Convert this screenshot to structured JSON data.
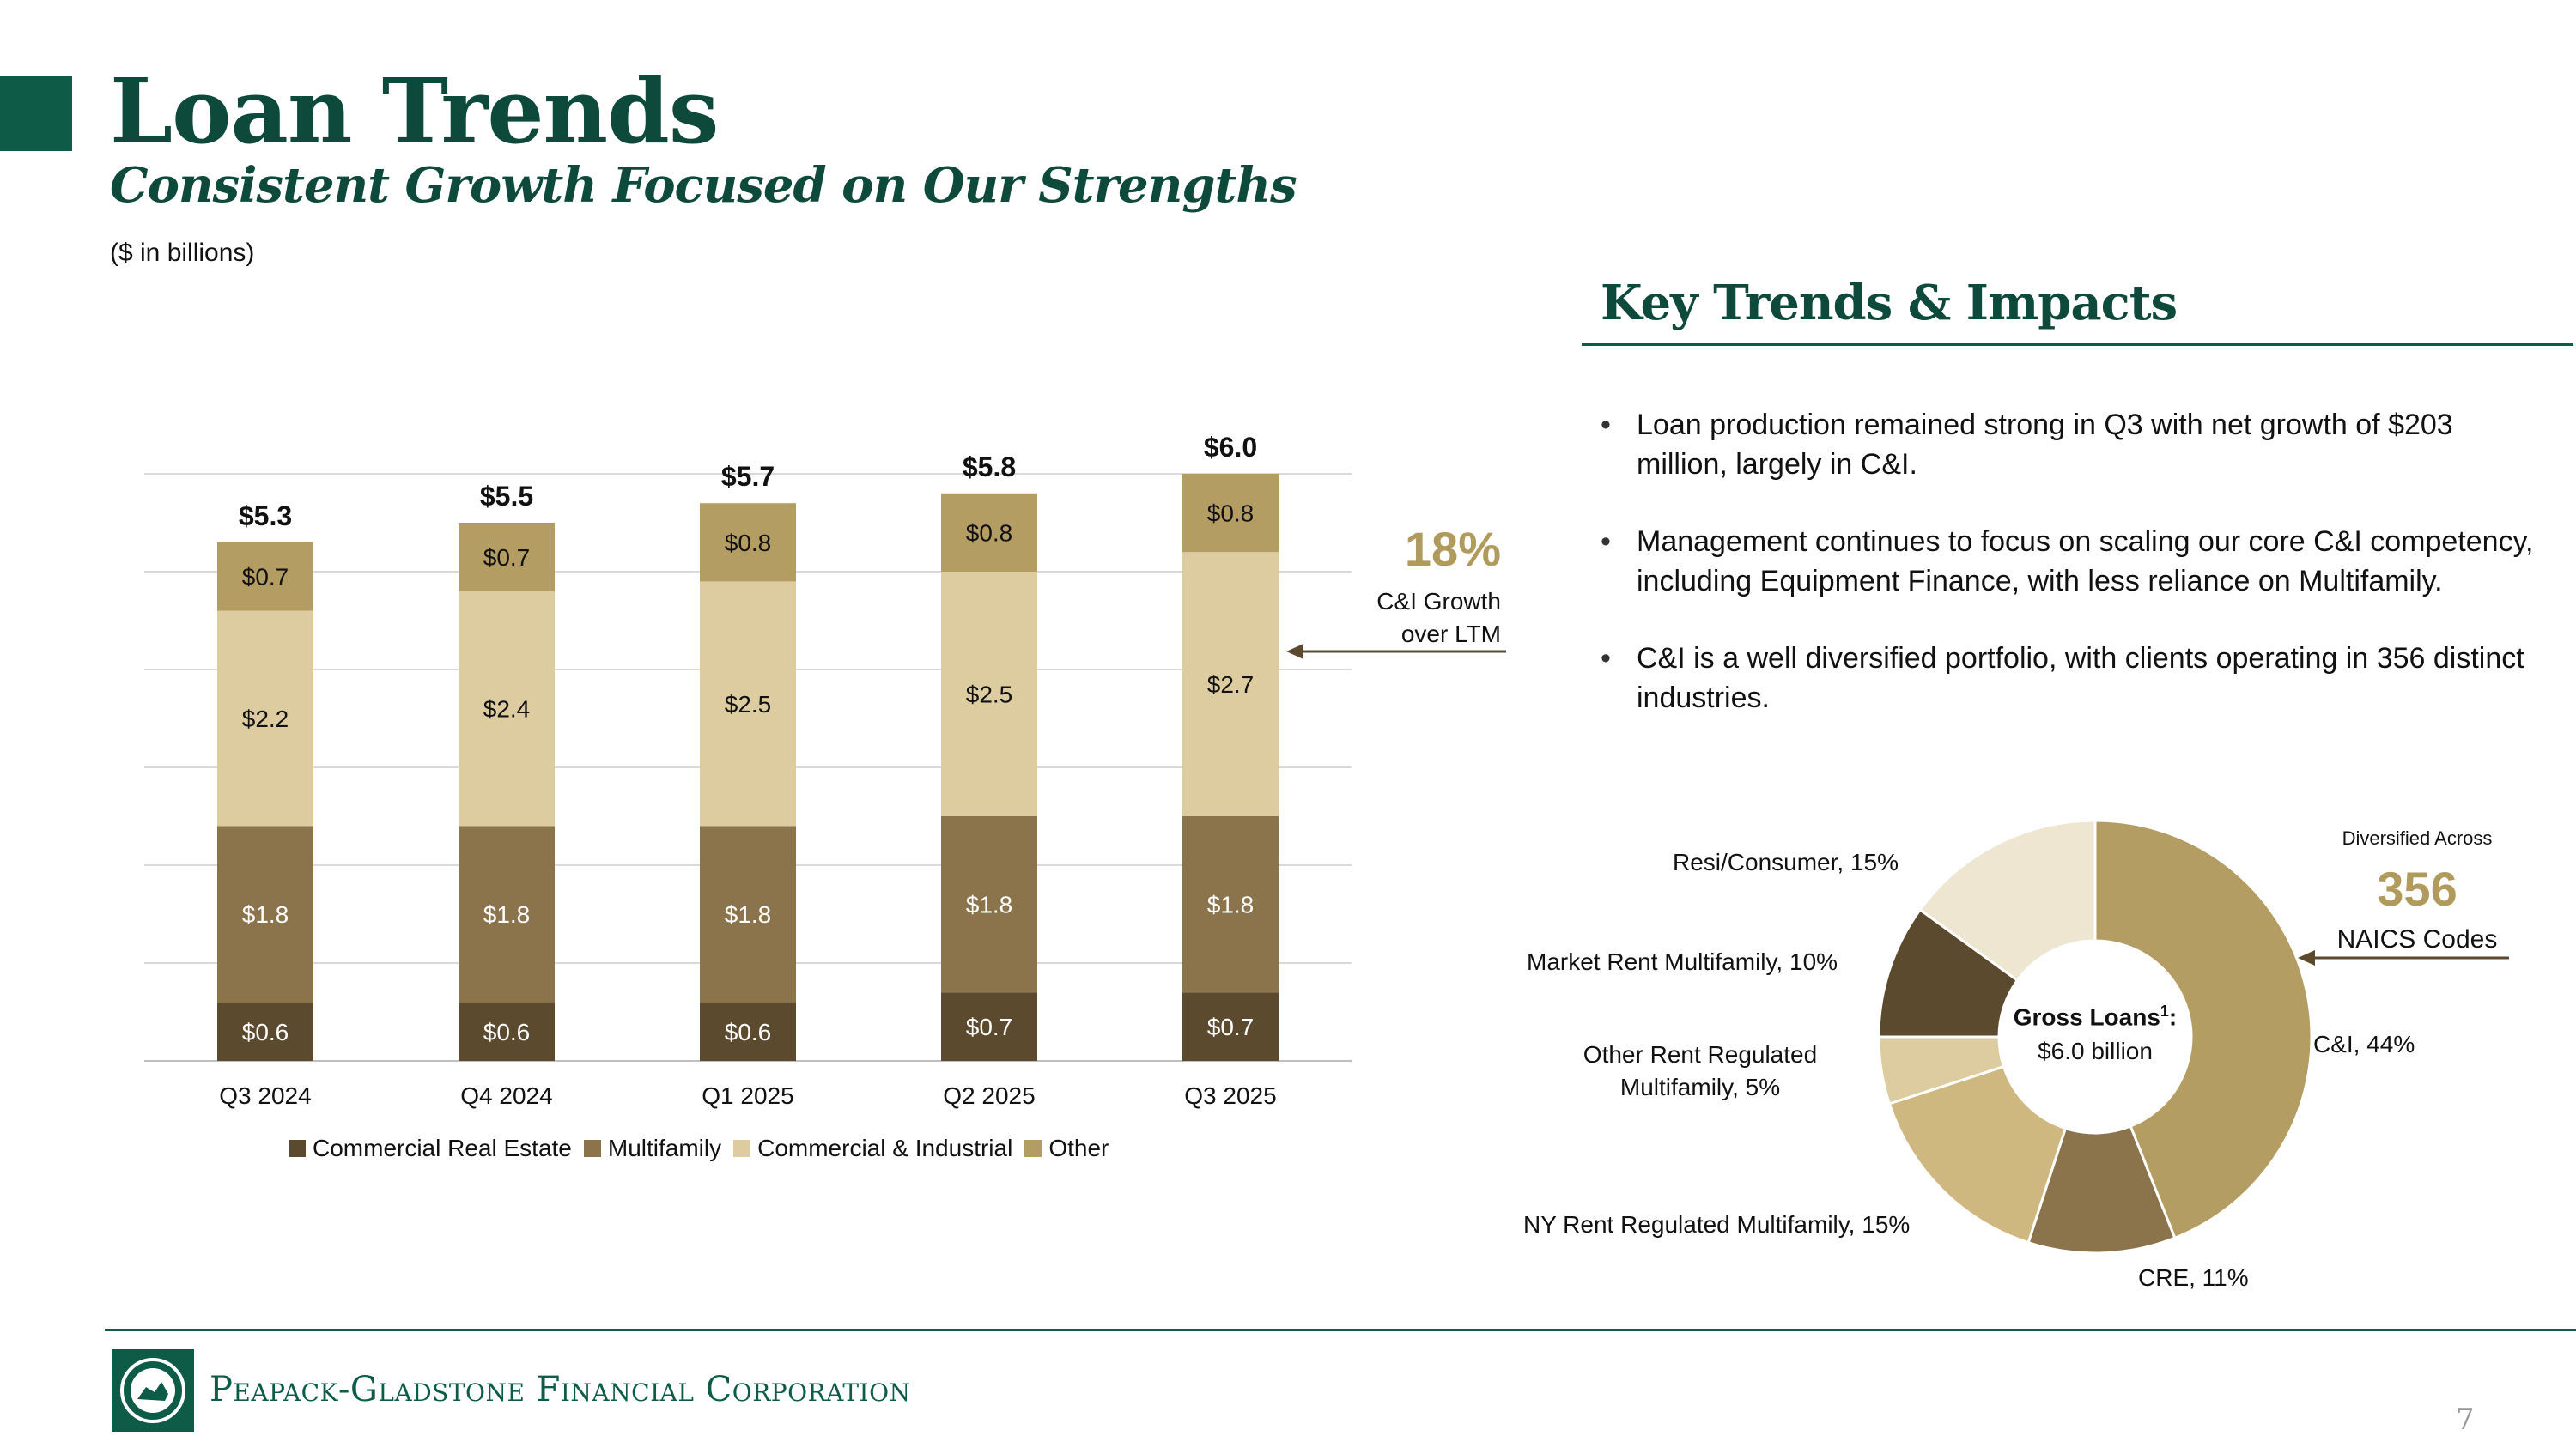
{
  "header": {
    "title": "Loan Trends",
    "subtitle": "Consistent Growth Focused on Our Strengths",
    "units": "($ in billions)"
  },
  "colors": {
    "brand_green": "#0e5b47",
    "cre": "#5b4a2e",
    "multifamily": "#8b744c",
    "ci": "#dccca0",
    "other": "#b39d63",
    "accent_gold": "#b09a5c"
  },
  "chart_data": [
    {
      "type": "bar",
      "stacked": true,
      "title": "",
      "categories": [
        "Q3 2024",
        "Q4 2024",
        "Q1 2025",
        "Q2 2025",
        "Q3 2025"
      ],
      "series": [
        {
          "name": "Commercial Real Estate",
          "values": [
            0.6,
            0.6,
            0.6,
            0.7,
            0.7
          ],
          "labels": [
            "$0.6",
            "$0.6",
            "$0.6",
            "$0.7",
            "$0.7"
          ],
          "color": "#5b4a2e"
        },
        {
          "name": "Multifamily",
          "values": [
            1.8,
            1.8,
            1.8,
            1.8,
            1.8
          ],
          "labels": [
            "$1.8",
            "$1.8",
            "$1.8",
            "$1.8",
            "$1.8"
          ],
          "color": "#8b744c"
        },
        {
          "name": "Commercial & Industrial",
          "values": [
            2.2,
            2.4,
            2.5,
            2.5,
            2.7
          ],
          "labels": [
            "$2.2",
            "$2.4",
            "$2.5",
            "$2.5",
            "$2.7"
          ],
          "color": "#dccca0"
        },
        {
          "name": "Other",
          "values": [
            0.7,
            0.7,
            0.8,
            0.8,
            0.8
          ],
          "labels": [
            "$0.7",
            "$0.7",
            "$0.8",
            "$0.8",
            "$0.8"
          ],
          "color": "#b39d63"
        }
      ],
      "totals": [
        5.3,
        5.5,
        5.7,
        5.8,
        6.0
      ],
      "total_labels": [
        "$5.3",
        "$5.5",
        "$5.7",
        "$5.8",
        "$6.0"
      ],
      "ylim": [
        0,
        6
      ],
      "grid": true,
      "xlabel": "",
      "ylabel": "",
      "legend": "bottom"
    },
    {
      "type": "pie",
      "donut": true,
      "title": "Gross Loans",
      "center_label": "Gross Loans",
      "center_sup": "1",
      "center_value": "$6.0 billion",
      "slices": [
        {
          "name": "C&I",
          "value": 44,
          "label": "C&I, 44%",
          "color": "#b39d63"
        },
        {
          "name": "CRE",
          "value": 11,
          "label": "CRE, 11%",
          "color": "#8b744c"
        },
        {
          "name": "NY Rent Regulated Multifamily",
          "value": 15,
          "label": "NY Rent Regulated Multifamily, 15%",
          "color": "#cfb880"
        },
        {
          "name": "Other Rent Regulated Multifamily",
          "value": 5,
          "label_line1": "Other Rent Regulated",
          "label_line2": "Multifamily, 5%",
          "color": "#dccca0"
        },
        {
          "name": "Market Rent Multifamily",
          "value": 10,
          "label": "Market Rent Multifamily, 10%",
          "color": "#5b4a2e"
        },
        {
          "name": "Resi/Consumer",
          "value": 15,
          "label": "Resi/Consumer, 15%",
          "color": "#efe6d2"
        }
      ]
    }
  ],
  "ci_growth": {
    "value": "18%",
    "line1": "C&I Growth",
    "line2": "over LTM"
  },
  "key_trends": {
    "heading": "Key Trends & Impacts",
    "bullets": [
      "Loan production remained strong in Q3 with net growth of $203 million, largely in C&I.",
      "Management continues to focus on scaling our core C&I competency, including Equipment Finance, with less reliance on Multifamily.",
      "C&I is a well diversified portfolio, with clients operating in 356 distinct industries."
    ]
  },
  "naics": {
    "top": "Diversified Across",
    "number": "356",
    "bottom": "NAICS Codes"
  },
  "footer": {
    "company": "Peapack-Gladstone Financial Corporation",
    "page_number": "7"
  }
}
